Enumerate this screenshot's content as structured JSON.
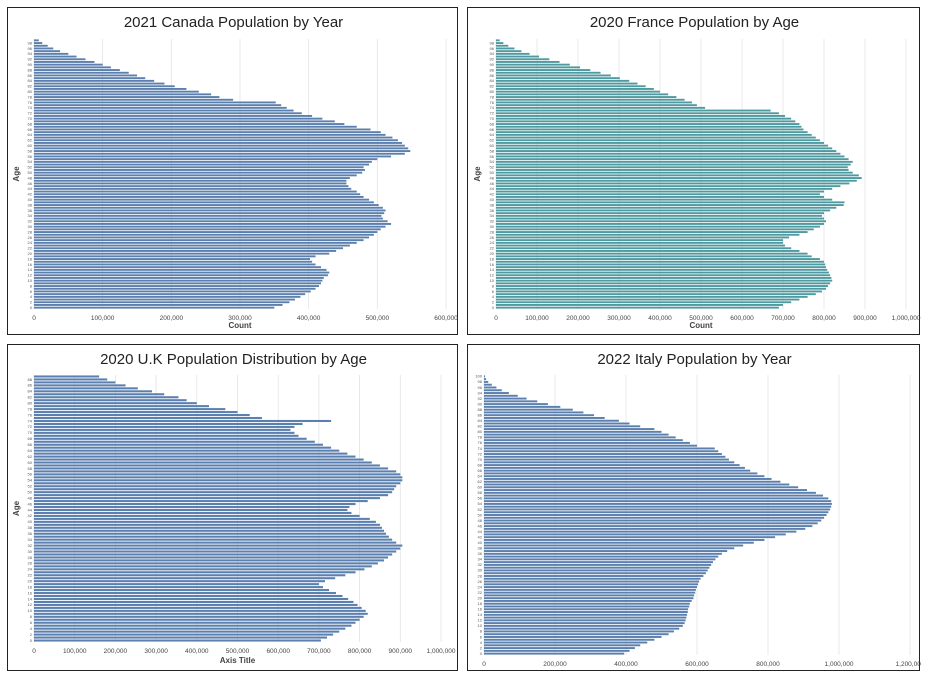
{
  "chart_data": [
    {
      "type": "bar",
      "orientation": "horizontal",
      "title": "2021 Canada Population by Year",
      "xlabel": "Count",
      "ylabel": "Age",
      "xlim": [
        0,
        600000
      ],
      "xticks": [
        "0",
        "100,000",
        "200,000",
        "300,000",
        "400,000",
        "500,000",
        "600,000"
      ],
      "grid": "vertical",
      "bar_color": "#5b7fae",
      "age_range": [
        0,
        99
      ],
      "values": [
        350000,
        362000,
        372000,
        380000,
        388000,
        395000,
        403000,
        410000,
        415000,
        418000,
        420000,
        422000,
        428000,
        430000,
        426000,
        418000,
        410000,
        405000,
        402000,
        410000,
        430000,
        440000,
        450000,
        460000,
        470000,
        480000,
        488000,
        495000,
        500000,
        505000,
        512000,
        520000,
        515000,
        508000,
        506000,
        510000,
        512000,
        508000,
        502000,
        495000,
        488000,
        480000,
        475000,
        470000,
        462000,
        458000,
        455000,
        455000,
        460000,
        470000,
        478000,
        482000,
        480000,
        488000,
        492000,
        500000,
        520000,
        540000,
        548000,
        545000,
        540000,
        536000,
        530000,
        522000,
        512000,
        505000,
        490000,
        470000,
        452000,
        438000,
        420000,
        405000,
        390000,
        378000,
        368000,
        360000,
        352000,
        290000,
        270000,
        258000,
        240000,
        222000,
        205000,
        190000,
        175000,
        162000,
        150000,
        138000,
        125000,
        112000,
        100000,
        88000,
        75000,
        62000,
        50000,
        38000,
        28000,
        20000,
        12000,
        7000
      ]
    },
    {
      "type": "bar",
      "orientation": "horizontal",
      "title": "2020 France Population by Age",
      "xlabel": "Count",
      "ylabel": "Age",
      "xlim": [
        0,
        1000000
      ],
      "xticks": [
        "0",
        "100,000",
        "200,000",
        "300,000",
        "400,000",
        "500,000",
        "600,000",
        "700,000",
        "800,000",
        "900,000",
        "1,000,000"
      ],
      "grid": "vertical",
      "bar_color": "#4e9aa0",
      "age_range": [
        0,
        99
      ],
      "values": [
        690000,
        700000,
        720000,
        740000,
        760000,
        780000,
        795000,
        805000,
        810000,
        815000,
        820000,
        818000,
        815000,
        812000,
        808000,
        805000,
        803000,
        800000,
        790000,
        770000,
        760000,
        740000,
        720000,
        705000,
        700000,
        700000,
        715000,
        740000,
        760000,
        775000,
        790000,
        800000,
        805000,
        800000,
        795000,
        800000,
        815000,
        830000,
        848000,
        850000,
        820000,
        800000,
        790000,
        800000,
        820000,
        840000,
        862000,
        880000,
        892000,
        885000,
        870000,
        860000,
        858000,
        865000,
        870000,
        860000,
        850000,
        840000,
        830000,
        820000,
        810000,
        800000,
        790000,
        780000,
        770000,
        760000,
        750000,
        745000,
        740000,
        730000,
        720000,
        705000,
        690000,
        670000,
        510000,
        490000,
        478000,
        460000,
        440000,
        420000,
        400000,
        385000,
        365000,
        345000,
        325000,
        302000,
        280000,
        255000,
        230000,
        205000,
        180000,
        155000,
        130000,
        105000,
        82000,
        62000,
        45000,
        30000,
        18000,
        9000
      ]
    },
    {
      "type": "bar",
      "orientation": "horizontal",
      "title": "2020 U.K Population Distribution by Age",
      "xlabel": "Axis Title",
      "ylabel": "Age",
      "xlim": [
        0,
        1000000
      ],
      "xticks": [
        "0",
        "100,000",
        "200,000",
        "300,000",
        "400,000",
        "500,000",
        "600,000",
        "700,000",
        "800,000",
        "900,000",
        "1,000,000"
      ],
      "grid": "vertical",
      "bar_color": "#5b80b0",
      "age_range": [
        0,
        89
      ],
      "values": [
        705000,
        720000,
        735000,
        750000,
        765000,
        780000,
        790000,
        800000,
        810000,
        820000,
        815000,
        805000,
        795000,
        785000,
        772000,
        758000,
        742000,
        725000,
        710000,
        700000,
        715000,
        740000,
        765000,
        790000,
        812000,
        830000,
        845000,
        860000,
        870000,
        880000,
        890000,
        900000,
        905000,
        890000,
        880000,
        872000,
        865000,
        860000,
        855000,
        850000,
        840000,
        825000,
        800000,
        780000,
        770000,
        775000,
        790000,
        820000,
        850000,
        870000,
        880000,
        885000,
        890000,
        900000,
        905000,
        905000,
        900000,
        890000,
        870000,
        850000,
        830000,
        810000,
        790000,
        770000,
        750000,
        730000,
        710000,
        690000,
        670000,
        650000,
        640000,
        630000,
        640000,
        660000,
        730000,
        560000,
        530000,
        500000,
        470000,
        430000,
        400000,
        375000,
        355000,
        320000,
        290000,
        255000,
        225000,
        200000,
        180000,
        160000
      ]
    },
    {
      "type": "bar",
      "orientation": "horizontal",
      "title": "2022 Italy Population by Year",
      "xlabel": "",
      "ylabel": "",
      "xlim": [
        0,
        1200000
      ],
      "xticks": [
        "0",
        "200,000",
        "400,000",
        "600,000",
        "800,000",
        "1,000,000",
        "1,200,000"
      ],
      "grid": "vertical",
      "bar_color": "#5b7fae",
      "age_range": [
        0,
        100
      ],
      "values": [
        395000,
        410000,
        425000,
        440000,
        460000,
        480000,
        500000,
        520000,
        535000,
        550000,
        560000,
        565000,
        568000,
        570000,
        572000,
        574000,
        575000,
        578000,
        580000,
        585000,
        590000,
        592000,
        595000,
        597000,
        600000,
        603000,
        606000,
        610000,
        618000,
        625000,
        630000,
        635000,
        640000,
        645000,
        652000,
        660000,
        670000,
        685000,
        705000,
        730000,
        760000,
        790000,
        820000,
        850000,
        880000,
        905000,
        925000,
        940000,
        950000,
        958000,
        965000,
        970000,
        975000,
        978000,
        980000,
        978000,
        970000,
        955000,
        935000,
        910000,
        885000,
        860000,
        835000,
        810000,
        790000,
        770000,
        750000,
        735000,
        720000,
        705000,
        690000,
        680000,
        670000,
        660000,
        650000,
        600000,
        580000,
        560000,
        540000,
        520000,
        500000,
        480000,
        440000,
        410000,
        380000,
        340000,
        310000,
        280000,
        250000,
        215000,
        180000,
        150000,
        120000,
        95000,
        70000,
        50000,
        35000,
        22000,
        12000,
        6000,
        3000
      ]
    }
  ]
}
